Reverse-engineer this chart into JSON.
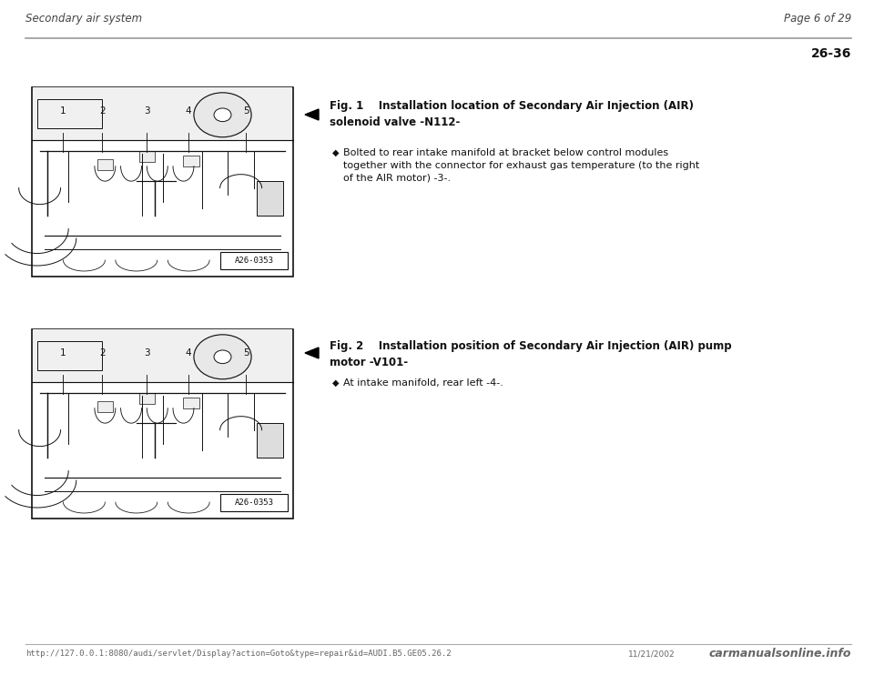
{
  "bg_color": "#ffffff",
  "header_left": "Secondary air system",
  "header_right": "Page 6 of 29",
  "page_number": "26-36",
  "separator_color": "#aaaaaa",
  "fig1_title_label": "Fig. 1",
  "fig1_title_text": "Installation location of Secondary Air Injection (AIR)\nsolenoid valve -N112-",
  "fig1_bullet": "Bolted to rear intake manifold at bracket below control modules\ntogether with the connector for exhaust gas temperature (to the right\nof the AIR motor) -3-.",
  "fig2_title_label": "Fig. 2",
  "fig2_title_text": "Installation position of Secondary Air Injection (AIR) pump\nmotor -V101-",
  "fig2_bullet": "At intake manifold, rear left -4-.",
  "footer_url": "http://127.0.0.1:8080/audi/servlet/Display?action=Goto&type=repair&id=AUDI.B5.GE05.26.2",
  "footer_date": "11/21/2002",
  "footer_brand": "carmanualsonline.info",
  "image_label": "A26-0353",
  "header_fontsize": 8.5,
  "title_fontsize": 8.5,
  "body_fontsize": 8.0,
  "footer_fontsize": 6.5
}
